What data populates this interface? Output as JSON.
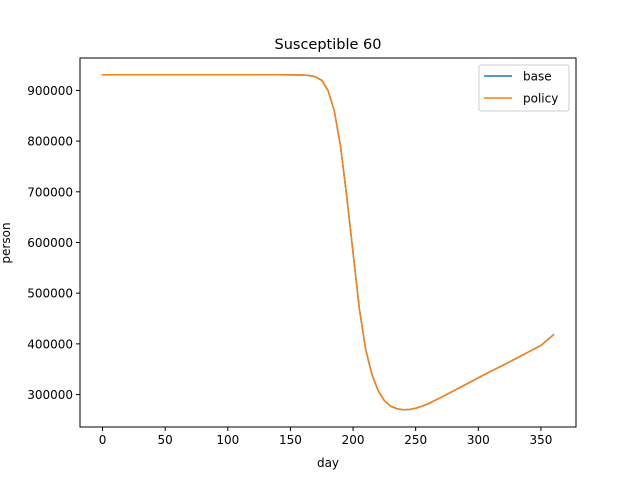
{
  "chart_data": {
    "type": "line",
    "title": "Susceptible 60",
    "xlabel": "day",
    "ylabel": "person",
    "xlim": [
      -18,
      378
    ],
    "ylim": [
      236000,
      964000
    ],
    "xticks": [
      0,
      50,
      100,
      150,
      200,
      250,
      300,
      350
    ],
    "yticks": [
      300000,
      400000,
      500000,
      600000,
      700000,
      800000,
      900000
    ],
    "xtick_labels": [
      "0",
      "50",
      "100",
      "150",
      "200",
      "250",
      "300",
      "350"
    ],
    "ytick_labels": [
      "300000",
      "400000",
      "500000",
      "600000",
      "700000",
      "800000",
      "900000"
    ],
    "grid": false,
    "legend_position": "upper right",
    "series": [
      {
        "name": "base",
        "color": "#1f77b4",
        "x": [
          0,
          20,
          40,
          60,
          80,
          100,
          120,
          140,
          150,
          160,
          165,
          170,
          175,
          180,
          185,
          190,
          195,
          200,
          205,
          210,
          215,
          220,
          225,
          230,
          235,
          240,
          245,
          250,
          255,
          260,
          270,
          280,
          290,
          300,
          310,
          320,
          330,
          340,
          350,
          360
        ],
        "values": [
          931000,
          931000,
          931000,
          931000,
          931000,
          931000,
          931000,
          931000,
          930800,
          930500,
          929500,
          927000,
          920000,
          900000,
          860000,
          790000,
          690000,
          580000,
          470000,
          390000,
          340000,
          308000,
          288000,
          277000,
          272000,
          270000,
          270500,
          273000,
          277000,
          282000,
          294000,
          307000,
          320000,
          333000,
          346000,
          358000,
          371000,
          384000,
          397000,
          418000
        ]
      },
      {
        "name": "policy",
        "color": "#ff7f0e",
        "x": [
          0,
          20,
          40,
          60,
          80,
          100,
          120,
          140,
          150,
          160,
          165,
          170,
          175,
          180,
          185,
          190,
          195,
          200,
          205,
          210,
          215,
          220,
          225,
          230,
          235,
          240,
          245,
          250,
          255,
          260,
          270,
          280,
          290,
          300,
          310,
          320,
          330,
          340,
          350,
          360
        ],
        "values": [
          931000,
          931000,
          931000,
          931000,
          931000,
          931000,
          931000,
          931000,
          930800,
          930500,
          929500,
          927000,
          920000,
          900000,
          860000,
          790000,
          690000,
          580000,
          470000,
          390000,
          340000,
          308000,
          288000,
          277000,
          272000,
          270000,
          270500,
          273000,
          277000,
          282000,
          294000,
          307000,
          320000,
          333000,
          346000,
          358000,
          371000,
          384000,
          397000,
          418000
        ]
      }
    ]
  }
}
